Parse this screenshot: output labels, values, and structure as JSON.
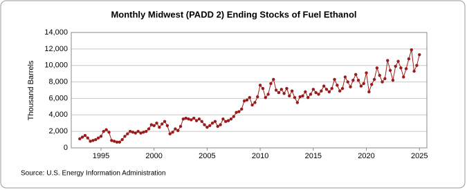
{
  "chart_data": {
    "type": "line",
    "title": "Monthly Midwest (PADD 2) Ending Stocks of Fuel Ethanol",
    "y_label": "Thousand Barrels",
    "source": "Source: U.S. Energy Information Administration",
    "x": [
      1993,
      1993.25,
      1993.5,
      1993.75,
      1994,
      1994.25,
      1994.5,
      1994.75,
      1995,
      1995.25,
      1995.5,
      1995.75,
      1996,
      1996.25,
      1996.5,
      1996.75,
      1997,
      1997.25,
      1997.5,
      1997.75,
      1998,
      1998.25,
      1998.5,
      1998.75,
      1999,
      1999.25,
      1999.5,
      1999.75,
      2000,
      2000.25,
      2000.5,
      2000.75,
      2001,
      2001.25,
      2001.5,
      2001.75,
      2002,
      2002.25,
      2002.5,
      2002.75,
      2003,
      2003.25,
      2003.5,
      2003.75,
      2004,
      2004.25,
      2004.5,
      2004.75,
      2005,
      2005.25,
      2005.5,
      2005.75,
      2006,
      2006.25,
      2006.5,
      2006.75,
      2007,
      2007.25,
      2007.5,
      2007.75,
      2008,
      2008.25,
      2008.5,
      2008.75,
      2009,
      2009.25,
      2009.5,
      2009.75,
      2010,
      2010.25,
      2010.5,
      2010.75,
      2011,
      2011.25,
      2011.5,
      2011.75,
      2012,
      2012.25,
      2012.5,
      2012.75,
      2013,
      2013.25,
      2013.5,
      2013.75,
      2014,
      2014.25,
      2014.5,
      2014.75,
      2015,
      2015.25,
      2015.5,
      2015.75,
      2016,
      2016.25,
      2016.5,
      2016.75,
      2017,
      2017.25,
      2017.5,
      2017.75,
      2018,
      2018.25,
      2018.5,
      2018.75,
      2019,
      2019.25,
      2019.5,
      2019.75,
      2020,
      2020.25,
      2020.5,
      2020.75,
      2021,
      2021.25,
      2021.5,
      2021.75,
      2022,
      2022.25,
      2022.5,
      2022.75,
      2023,
      2023.25,
      2023.5,
      2023.75,
      2024,
      2024.25,
      2024.5,
      2024.75,
      2025
    ],
    "series": [
      {
        "name": "Ending Stocks",
        "color": "#9b1b1b",
        "values": [
          1100,
          1300,
          1500,
          1200,
          800,
          900,
          1000,
          1200,
          1400,
          2000,
          2200,
          1900,
          900,
          800,
          700,
          700,
          1000,
          1400,
          1700,
          2000,
          1900,
          1800,
          2000,
          1800,
          1900,
          2000,
          2300,
          2800,
          2700,
          3000,
          2500,
          2900,
          3200,
          2700,
          1700,
          1900,
          2300,
          2100,
          2600,
          3500,
          3600,
          3500,
          3400,
          3600,
          3300,
          3500,
          3200,
          2800,
          2500,
          2700,
          3000,
          3200,
          2600,
          2800,
          3500,
          3200,
          3300,
          3500,
          3800,
          4300,
          4400,
          4700,
          5700,
          5800,
          6100,
          5200,
          5500,
          6200,
          7600,
          7200,
          6100,
          6500,
          7800,
          8300,
          7000,
          6700,
          7100,
          6600,
          7200,
          6300,
          6900,
          6100,
          5500,
          6200,
          6300,
          6800,
          6100,
          6500,
          7100,
          6700,
          6500,
          6900,
          7500,
          7100,
          6800,
          7200,
          8300,
          7600,
          6900,
          7200,
          8600,
          8000,
          7400,
          8200,
          8900,
          8200,
          7500,
          7800,
          9100,
          6800,
          7700,
          8300,
          9700,
          8800,
          8000,
          8400,
          10600,
          9400,
          8200,
          9900,
          10500,
          9700,
          8600,
          9600,
          10800,
          11900,
          9300,
          10000,
          11300
        ]
      }
    ],
    "xlim": [
      1992.2,
      2025.7
    ],
    "xticks": [
      1995,
      2000,
      2005,
      2010,
      2015,
      2020,
      2025
    ],
    "ylim": [
      0,
      14000
    ],
    "yticks": [
      0,
      {
        "value": 2000,
        "label": "2,000"
      },
      {
        "value": 4000,
        "label": "4,000"
      },
      {
        "value": 6000,
        "label": "6,000"
      },
      {
        "value": 8000,
        "label": "8,000"
      },
      {
        "value": 10000,
        "label": "10,000"
      },
      {
        "value": 12000,
        "label": "12,000"
      },
      {
        "value": 14000,
        "label": "14,000"
      }
    ],
    "grid": true
  }
}
